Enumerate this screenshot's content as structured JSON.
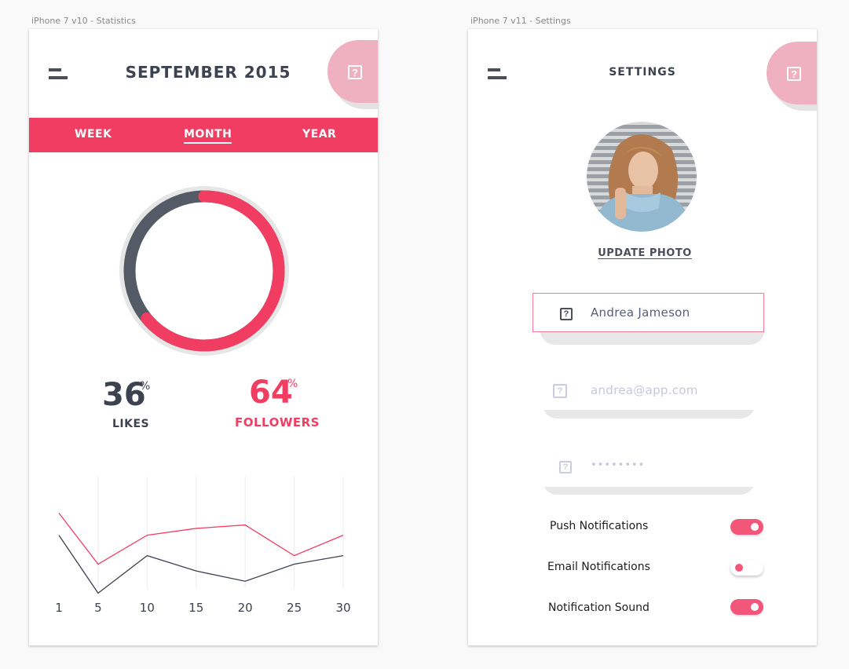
{
  "colors": {
    "accent": "#f23d63",
    "accent_soft": "#efb0c0",
    "dark": "#4a4f59"
  },
  "statistics": {
    "artboard_label": "iPhone 7 v10 - Statistics",
    "menu_icon": "hamburger-icon",
    "help_icon": "help-icon",
    "help_glyph": "?",
    "title": "SEPTEMBER 2015",
    "tabs": [
      {
        "label": "WEEK",
        "active": false
      },
      {
        "label": "MONTH",
        "active": true
      },
      {
        "label": "YEAR",
        "active": false
      }
    ],
    "likes": {
      "value": "36",
      "unit": "%",
      "label": "LIKES"
    },
    "followers": {
      "value": "64",
      "unit": "%",
      "label": "FOLLOWERS"
    }
  },
  "chart_data": {
    "type": "line",
    "x": [
      1,
      5,
      10,
      15,
      20,
      25,
      30
    ],
    "x_tick_labels": [
      "1",
      "5",
      "10",
      "15",
      "20",
      "25",
      "30"
    ],
    "series": [
      {
        "color": "#f23d63",
        "values": [
          80,
          50,
          67,
          71,
          73,
          55,
          67
        ]
      },
      {
        "color": "#3c424f",
        "values": [
          67,
          33,
          55,
          46,
          40,
          50,
          55
        ]
      }
    ],
    "ylim": [
      0,
      100
    ],
    "grid": "vertical"
  },
  "settings": {
    "artboard_label": "iPhone 7 v11 - Settings",
    "menu_icon": "hamburger-icon",
    "help_icon": "help-icon",
    "help_glyph": "?",
    "title": "SETTINGS",
    "update_photo": "UPDATE PHOTO",
    "fields": [
      {
        "icon": "user-icon",
        "glyph": "?",
        "value": "Andrea Jameson",
        "active": true
      },
      {
        "icon": "email-icon",
        "glyph": "?",
        "placeholder": "andrea@app.com",
        "active": false
      },
      {
        "icon": "lock-icon",
        "glyph": "?",
        "placeholder": "••••••••",
        "active": false
      }
    ],
    "toggles": [
      {
        "label": "Push Notifications",
        "on": true
      },
      {
        "label": "Email Notifications",
        "on": false
      },
      {
        "label": "Notification Sound",
        "on": true
      }
    ]
  }
}
